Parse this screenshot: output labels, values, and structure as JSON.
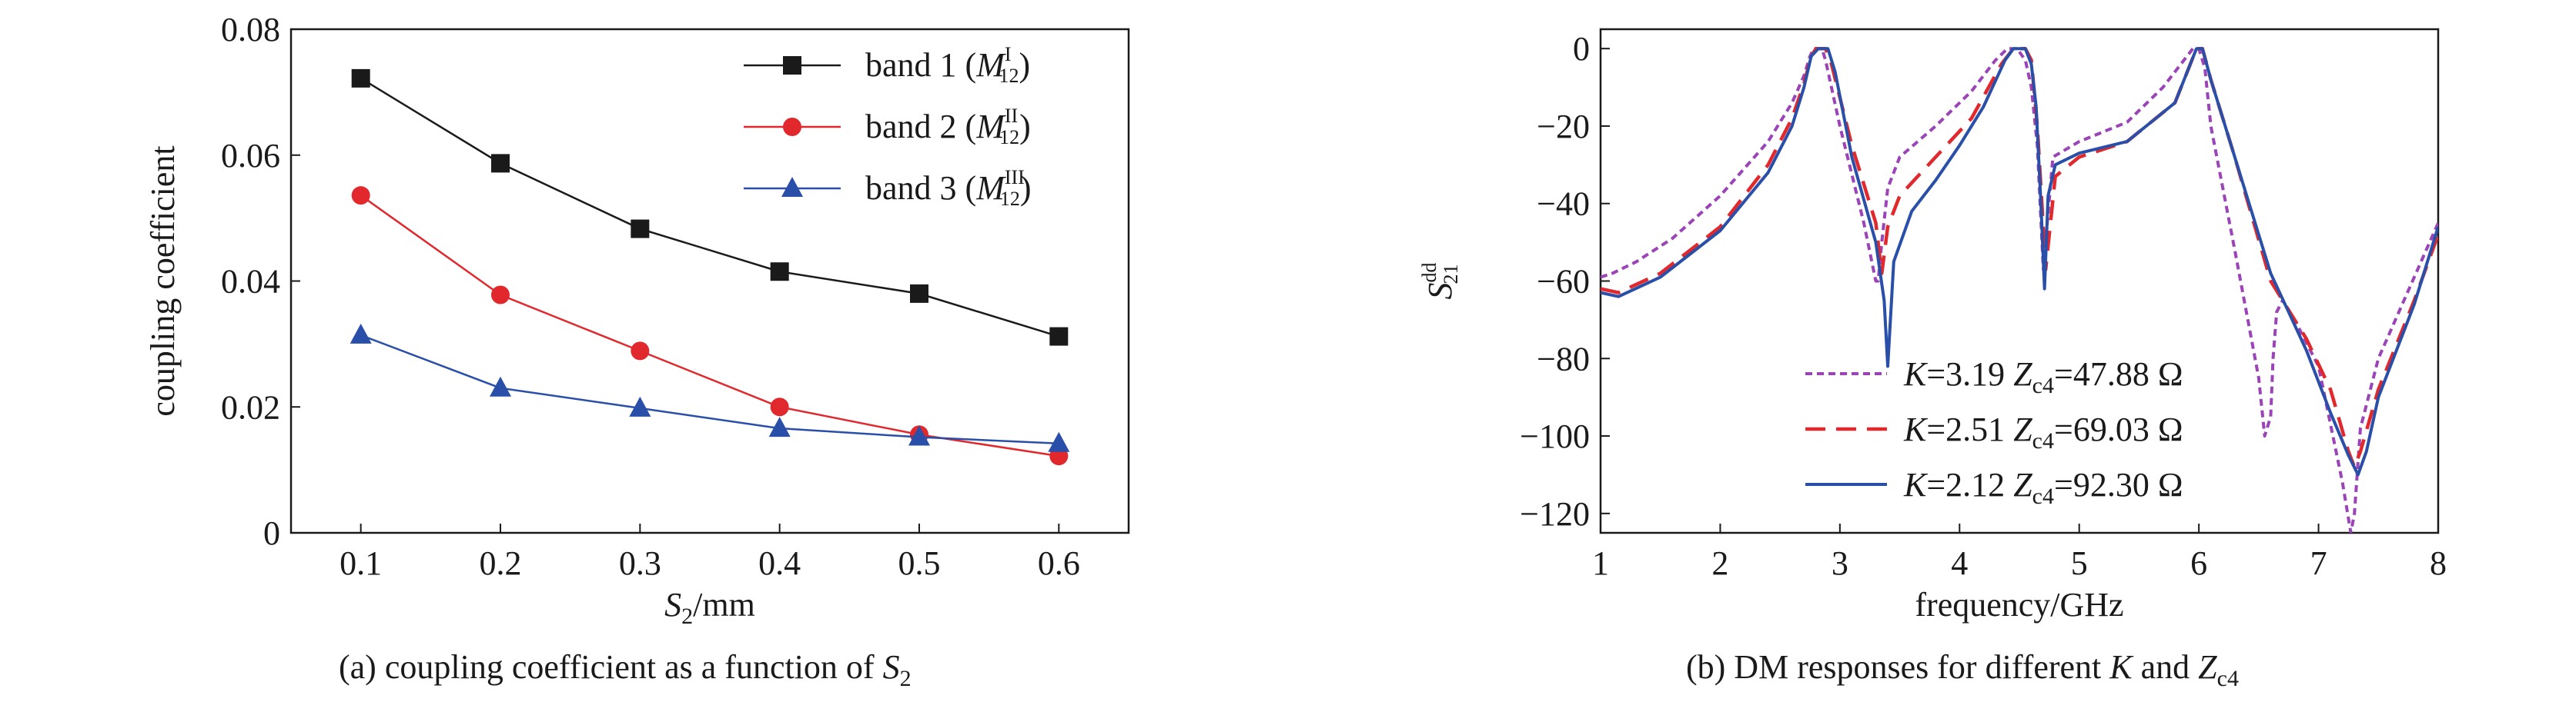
{
  "captions": {
    "a_text": "(a) coupling coefficient as a function of ",
    "a_var": "S",
    "a_sub": "2",
    "b_text": "(b) DM responses for different ",
    "b_var1": "K",
    "b_mid": " and ",
    "b_var2": "Z",
    "b_sub": "c4"
  },
  "chart_data": [
    {
      "type": "line",
      "x": [
        0.1,
        0.2,
        0.3,
        0.4,
        0.5,
        0.6
      ],
      "xlim": [
        0.05,
        0.65
      ],
      "ylim": [
        0,
        0.08
      ],
      "xticks": [
        "0.1",
        "0.2",
        "0.3",
        "0.4",
        "0.5",
        "0.6"
      ],
      "yticks": [
        "0",
        "0.02",
        "0.04",
        "0.06",
        "0.08"
      ],
      "xlabel": "S",
      "xlabel_sub": "2",
      "xlabel_unit": "/mm",
      "ylabel": "coupling coefficient",
      "legend_position": "top-right",
      "grid": false,
      "series": [
        {
          "name": "band 1 (M",
          "sup": "I",
          "sub": "12",
          "close": ")",
          "color": "#1a1a1a",
          "marker": "square",
          "values": [
            0.0722,
            0.0587,
            0.0483,
            0.0415,
            0.038,
            0.0312
          ]
        },
        {
          "name": "band 2 (M",
          "sup": "II",
          "sub": "12",
          "close": ")",
          "color": "#e0282d",
          "marker": "circle",
          "values": [
            0.0536,
            0.0378,
            0.0289,
            0.02,
            0.0156,
            0.0122
          ]
        },
        {
          "name": "band 3 (M",
          "sup": "III",
          "sub": "12",
          "close": ")",
          "color": "#2a4fa8",
          "marker": "triangle",
          "values": [
            0.0314,
            0.023,
            0.0198,
            0.0166,
            0.0152,
            0.0142
          ]
        }
      ]
    },
    {
      "type": "line",
      "xlim": [
        1,
        8
      ],
      "ylim": [
        -125,
        5
      ],
      "xticks": [
        "1",
        "2",
        "3",
        "4",
        "5",
        "6",
        "7",
        "8"
      ],
      "yticks": [
        "0",
        "−20",
        "−40",
        "−60",
        "−80",
        "−100",
        "−120"
      ],
      "xlabel": "frequency/GHz",
      "ylabel": "S",
      "ylabel_sup": "dd",
      "ylabel_sub": "21",
      "legend_position": "bottom-center",
      "grid": false,
      "series": [
        {
          "name_k": "K",
          "name_k_val": "=3.19 ",
          "name_z": "Z",
          "name_z_sub": "c4",
          "name_z_val": "=47.88 Ω",
          "color": "#9b44b8",
          "dash": "short",
          "x": [
            1.0,
            1.1,
            1.3,
            1.6,
            2.0,
            2.4,
            2.6,
            2.7,
            2.75,
            2.78,
            2.85,
            2.88,
            3.0,
            3.2,
            3.3,
            3.32,
            3.35,
            3.4,
            3.5,
            3.8,
            4.1,
            4.3,
            4.4,
            4.48,
            4.55,
            4.6,
            4.65,
            4.7,
            4.78,
            5.0,
            5.4,
            5.7,
            5.95,
            6.0,
            6.05,
            6.1,
            6.3,
            6.5,
            6.55,
            6.6,
            6.62,
            6.65,
            6.7,
            6.8,
            7.0,
            7.2,
            7.27,
            7.3,
            7.35,
            7.5,
            7.7,
            8.0
          ],
          "y": [
            -59,
            -58,
            -55,
            -49,
            -38,
            -24,
            -14,
            -7,
            -2,
            0,
            0,
            -3,
            -20,
            -45,
            -60,
            -60,
            -50,
            -36,
            -28,
            -20,
            -11,
            -3,
            0,
            0,
            -3,
            -10,
            -25,
            -57,
            -28,
            -24,
            -19,
            -10,
            0,
            0,
            -5,
            -20,
            -52,
            -85,
            -100,
            -95,
            -80,
            -68,
            -65,
            -70,
            -82,
            -112,
            -125,
            -120,
            -98,
            -80,
            -66,
            -45
          ]
        },
        {
          "name_k": "K",
          "name_k_val": "=2.51 ",
          "name_z": "Z",
          "name_z_sub": "c4",
          "name_z_val": "=69.03 Ω",
          "color": "#e0282d",
          "dash": "long",
          "x": [
            1.0,
            1.15,
            1.5,
            2.0,
            2.4,
            2.6,
            2.7,
            2.76,
            2.8,
            2.88,
            2.93,
            3.1,
            3.3,
            3.35,
            3.4,
            3.5,
            3.8,
            4.1,
            4.35,
            4.45,
            4.55,
            4.6,
            4.65,
            4.72,
            4.8,
            5.0,
            5.4,
            5.8,
            5.98,
            6.03,
            6.1,
            6.3,
            6.6,
            6.9,
            7.1,
            7.25,
            7.3,
            7.35,
            7.5,
            7.8,
            8.0
          ],
          "y": [
            -62,
            -63,
            -58,
            -46,
            -30,
            -18,
            -9,
            -2,
            0,
            0,
            -4,
            -25,
            -45,
            -58,
            -46,
            -38,
            -28,
            -18,
            -4,
            0,
            0,
            -3,
            -20,
            -57,
            -33,
            -28,
            -24,
            -14,
            0,
            0,
            -8,
            -28,
            -60,
            -75,
            -88,
            -104,
            -108,
            -104,
            -88,
            -65,
            -48
          ]
        },
        {
          "name_k": "K",
          "name_k_val": "=2.12 ",
          "name_z": "Z",
          "name_z_sub": "c4",
          "name_z_val": "=92.30 Ω",
          "color": "#2a4fa8",
          "dash": "solid",
          "x": [
            1.0,
            1.15,
            1.5,
            2.0,
            2.4,
            2.6,
            2.7,
            2.76,
            2.82,
            2.9,
            2.96,
            3.1,
            3.3,
            3.37,
            3.4,
            3.45,
            3.6,
            3.8,
            4.0,
            4.2,
            4.38,
            4.45,
            4.55,
            4.6,
            4.64,
            4.68,
            4.71,
            4.74,
            4.8,
            5.0,
            5.4,
            5.8,
            5.98,
            6.03,
            6.1,
            6.3,
            6.6,
            6.9,
            7.1,
            7.25,
            7.33,
            7.4,
            7.5,
            7.8,
            8.0
          ],
          "y": [
            -63,
            -64,
            -59,
            -47,
            -32,
            -20,
            -10,
            -2,
            0,
            0,
            -6,
            -28,
            -50,
            -65,
            -82,
            -55,
            -42,
            -34,
            -25,
            -15,
            -3,
            0,
            0,
            -4,
            -15,
            -40,
            -62,
            -38,
            -30,
            -27,
            -24,
            -14,
            0,
            0,
            -8,
            -28,
            -58,
            -78,
            -94,
            -105,
            -110,
            -104,
            -90,
            -66,
            -46
          ]
        }
      ]
    }
  ]
}
